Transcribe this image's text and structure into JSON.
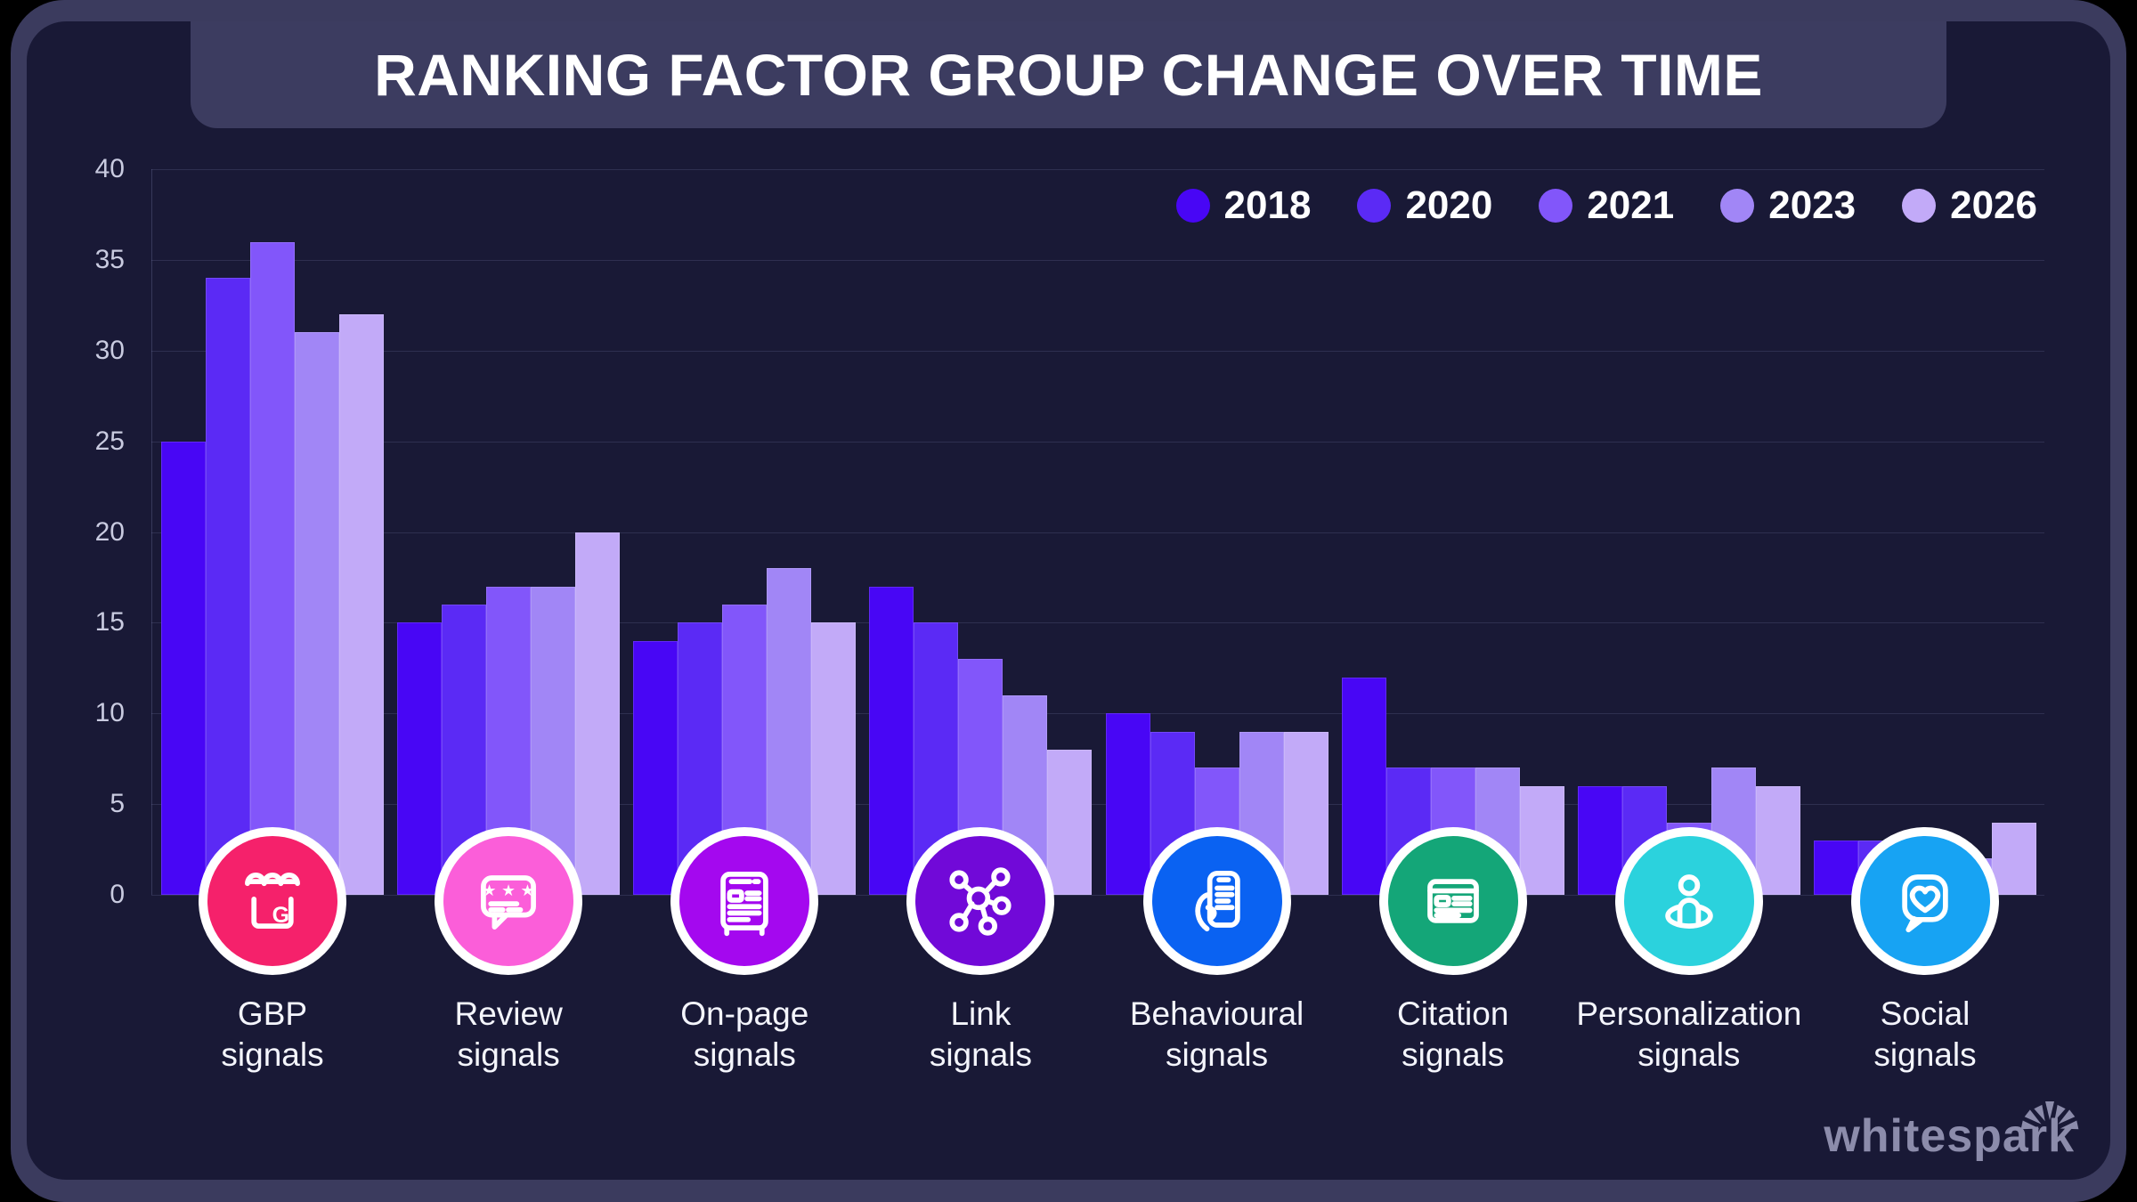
{
  "title": "RANKING FACTOR GROUP CHANGE OVER TIME",
  "chart_data": {
    "type": "bar",
    "title": "RANKING FACTOR GROUP CHANGE OVER TIME",
    "categories": [
      "GBP signals",
      "Review signals",
      "On-page signals",
      "Link signals",
      "Behavioural signals",
      "Citation signals",
      "Personalization signals",
      "Social signals"
    ],
    "category_lines": [
      [
        "GBP",
        "signals"
      ],
      [
        "Review",
        "signals"
      ],
      [
        "On-page",
        "signals"
      ],
      [
        "Link",
        "signals"
      ],
      [
        "Behavioural",
        "signals"
      ],
      [
        "Citation",
        "signals"
      ],
      [
        "Personalization",
        "signals"
      ],
      [
        "Social",
        "signals"
      ]
    ],
    "series": [
      {
        "name": "2018",
        "color": "#4806f5",
        "values": [
          25,
          15,
          14,
          17,
          10,
          12,
          6,
          3
        ]
      },
      {
        "name": "2020",
        "color": "#5b2af5",
        "values": [
          34,
          16,
          15,
          15,
          9,
          7,
          6,
          3
        ]
      },
      {
        "name": "2021",
        "color": "#8256fa",
        "values": [
          36,
          17,
          16,
          13,
          7,
          7,
          4,
          2
        ]
      },
      {
        "name": "2023",
        "color": "#a186f6",
        "values": [
          31,
          17,
          18,
          11,
          9,
          7,
          7,
          2
        ]
      },
      {
        "name": "2026",
        "color": "#c2aaf8",
        "values": [
          32,
          20,
          15,
          8,
          9,
          6,
          6,
          4
        ]
      }
    ],
    "ylim": [
      0,
      40
    ],
    "yticks": [
      0,
      5,
      10,
      15,
      20,
      25,
      30,
      35,
      40
    ],
    "grid": true,
    "legend_position": "top-right"
  },
  "icons": [
    {
      "name": "gbp-storefront-icon",
      "color": "#f5216b",
      "glyph_letter": "G"
    },
    {
      "name": "review-stars-bubble-icon",
      "color": "#fb5ed9",
      "stars": "★ ★ ★"
    },
    {
      "name": "onpage-document-icon",
      "color": "#a408ef"
    },
    {
      "name": "link-network-icon",
      "color": "#7109d8"
    },
    {
      "name": "behavioural-phone-hand-icon",
      "color": "#0a62f2"
    },
    {
      "name": "citation-listing-icon",
      "color": "#14a678"
    },
    {
      "name": "personalization-person-icon",
      "color": "#2bd2dd"
    },
    {
      "name": "social-heart-bubble-icon",
      "color": "#17a3f3"
    }
  ],
  "branding": {
    "logo_text": "whitespark"
  },
  "colors": {
    "background": "#191936",
    "frame": "#3b3b5e",
    "banner": "#3c3c60",
    "grid": "rgba(190,200,255,0.13)",
    "tick_text": "#c9cbe0"
  }
}
